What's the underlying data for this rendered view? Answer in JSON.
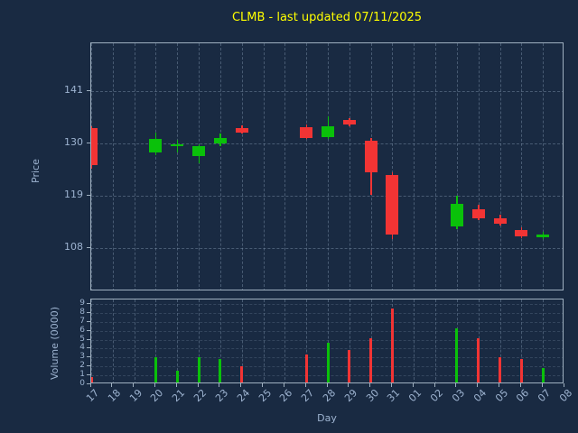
{
  "colors": {
    "background": "#192a42",
    "title": "#ffff00",
    "axis_text": "#9db3d0",
    "spine": "#9fb0c0",
    "grid": "#7e96af",
    "up": "#0ac10a",
    "down": "#f23434"
  },
  "chart_data": {
    "type": "candlestick",
    "title": "CLMB - last updated 07/11/2025",
    "xlabel": "Day",
    "legend": "none",
    "grid": "dashed",
    "price_axis": {
      "label": "Price",
      "ticks": [
        108,
        119,
        130,
        141
      ],
      "ylim": [
        99,
        151
      ]
    },
    "volume_axis": {
      "label": "Volume (0000)",
      "ticks": [
        0,
        1,
        2,
        3,
        4,
        5,
        6,
        7,
        8,
        9
      ],
      "ylim": [
        0,
        9.5
      ]
    },
    "days": [
      "17",
      "18",
      "19",
      "20",
      "21",
      "22",
      "23",
      "24",
      "25",
      "26",
      "27",
      "28",
      "29",
      "30",
      "31",
      "01",
      "02",
      "03",
      "04",
      "05",
      "06",
      "07",
      "08"
    ],
    "candles": [
      {
        "day": "17",
        "open": 133.2,
        "high": 133.6,
        "low": 124.8,
        "close": 125.4,
        "volume": 0.8,
        "dir": "down"
      },
      {
        "day": "20",
        "open": 128.2,
        "high": 132.3,
        "low": 127.5,
        "close": 131.0,
        "volume": 3.0,
        "dir": "up"
      },
      {
        "day": "21",
        "open": 129.4,
        "high": 130.7,
        "low": 128.1,
        "close": 129.9,
        "volume": 1.5,
        "dir": "up"
      },
      {
        "day": "22",
        "open": 127.3,
        "high": 129.9,
        "low": 125.8,
        "close": 129.5,
        "volume": 3.0,
        "dir": "up"
      },
      {
        "day": "23",
        "open": 130.1,
        "high": 132.0,
        "low": 129.5,
        "close": 131.2,
        "volume": 2.8,
        "dir": "up"
      },
      {
        "day": "24",
        "open": 133.3,
        "high": 133.7,
        "low": 132.0,
        "close": 132.2,
        "volume": 2.0,
        "dir": "down"
      },
      {
        "day": "27",
        "open": 133.4,
        "high": 133.9,
        "low": 130.9,
        "close": 131.2,
        "volume": 3.3,
        "dir": "down"
      },
      {
        "day": "28",
        "open": 131.4,
        "high": 135.7,
        "low": 131.0,
        "close": 133.6,
        "volume": 4.6,
        "dir": "up"
      },
      {
        "day": "29",
        "open": 134.9,
        "high": 135.4,
        "low": 133.6,
        "close": 134.0,
        "volume": 3.8,
        "dir": "down"
      },
      {
        "day": "30",
        "open": 130.6,
        "high": 131.1,
        "low": 119.2,
        "close": 124.0,
        "volume": 5.2,
        "dir": "down"
      },
      {
        "day": "31",
        "open": 123.4,
        "high": 123.9,
        "low": 110.0,
        "close": 110.9,
        "volume": 8.5,
        "dir": "down"
      },
      {
        "day": "03",
        "open": 112.6,
        "high": 119.0,
        "low": 112.0,
        "close": 117.3,
        "volume": 6.3,
        "dir": "up"
      },
      {
        "day": "04",
        "open": 116.2,
        "high": 117.1,
        "low": 114.0,
        "close": 114.4,
        "volume": 5.2,
        "dir": "down"
      },
      {
        "day": "05",
        "open": 114.3,
        "high": 115.1,
        "low": 112.8,
        "close": 113.2,
        "volume": 3.0,
        "dir": "down"
      },
      {
        "day": "06",
        "open": 111.9,
        "high": 112.4,
        "low": 110.2,
        "close": 110.6,
        "volume": 2.8,
        "dir": "down"
      },
      {
        "day": "07",
        "open": 110.4,
        "high": 111.4,
        "low": 109.9,
        "close": 111.0,
        "volume": 1.8,
        "dir": "up"
      }
    ]
  }
}
